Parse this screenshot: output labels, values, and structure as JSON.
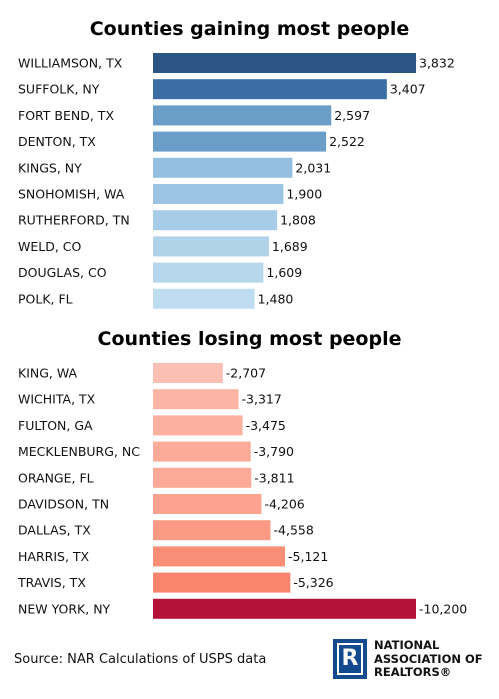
{
  "chart_data": [
    {
      "type": "bar",
      "orientation": "horizontal",
      "title": "Counties gaining most people",
      "categories": [
        "WILLIAMSON, TX",
        "SUFFOLK, NY",
        "FORT BEND, TX",
        "DENTON, TX",
        "KINGS, NY",
        "SNOHOMISH, WA",
        "RUTHERFORD, TN",
        "WELD, CO",
        "DOUGLAS, CO",
        "POLK, FL"
      ],
      "values": [
        3832,
        3407,
        2597,
        2522,
        2031,
        1900,
        1808,
        1689,
        1609,
        1480
      ],
      "labels": [
        "3,832",
        "3,407",
        "2,597",
        "2,522",
        "2,031",
        "1,900",
        "1,808",
        "1,689",
        "1,609",
        "1,480"
      ],
      "colors": [
        "#2a5585",
        "#3a6ea5",
        "#6a9ec8",
        "#6a9ec8",
        "#93bfe0",
        "#9bc5e3",
        "#a6cce7",
        "#b0d3ea",
        "#b6d7ec",
        "#bfddf0"
      ],
      "grid": false,
      "legend": "none"
    },
    {
      "type": "bar",
      "orientation": "horizontal",
      "title": "Counties losing most people",
      "categories": [
        "KING, WA",
        "WICHITA, TX",
        "FULTON, GA",
        "MECKLENBURG, NC",
        "ORANGE, FL",
        "DAVIDSON, TN",
        "DALLAS, TX",
        "HARRIS, TX",
        "TRAVIS, TX",
        "NEW YORK, NY"
      ],
      "values": [
        -2707,
        -3317,
        -3475,
        -3790,
        -3811,
        -4206,
        -4558,
        -5121,
        -5326,
        -10200
      ],
      "labels": [
        "-2,707",
        "-3,317",
        "-3,475",
        "-3,790",
        "-3,811",
        "-4,206",
        "-4,558",
        "-5,121",
        "-5,326",
        "-10,200"
      ],
      "colors": [
        "#fcbfb4",
        "#fcb4a5",
        "#fcb09f",
        "#fcab99",
        "#fca997",
        "#fca28e",
        "#fb9a85",
        "#fa8d76",
        "#f9866c",
        "#b5123a"
      ],
      "grid": false,
      "legend": "none"
    }
  ],
  "footer": {
    "source": "Source: NAR Calculations of USPS data",
    "logo_letter": "R",
    "logo_lines": [
      "NATIONAL",
      "ASSOCIATION OF",
      "REALTORS®"
    ]
  }
}
